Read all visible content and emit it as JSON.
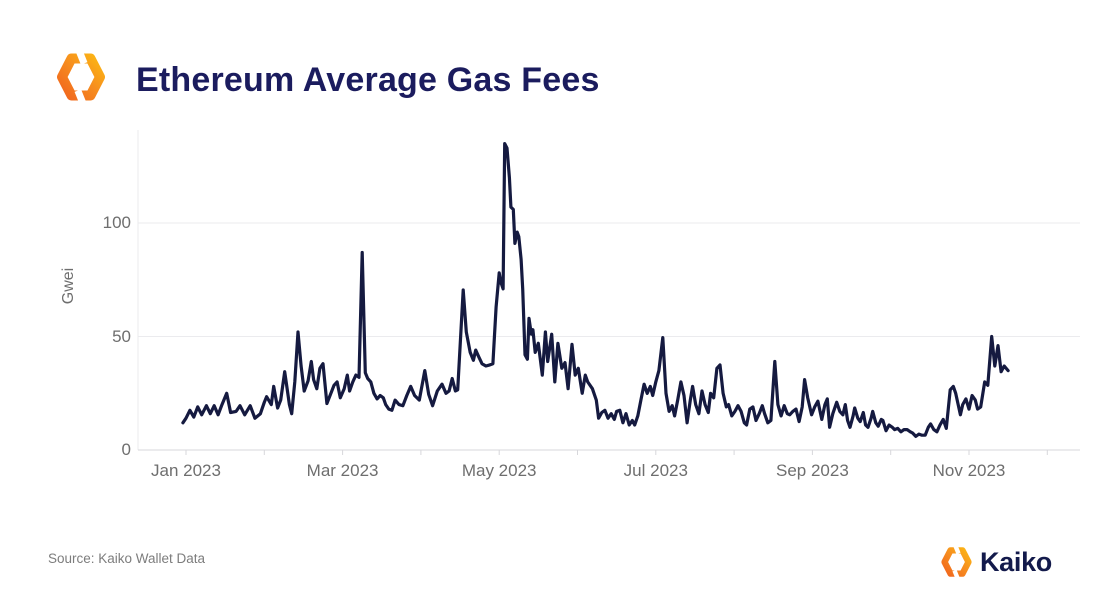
{
  "header": {
    "title": "Ethereum Average Gas Fees",
    "logo": "kaiko-hexagon-mark"
  },
  "footer": {
    "source_label": "Source: Kaiko Wallet Data",
    "brand_name": "Kaiko"
  },
  "colors": {
    "background": "#ffffff",
    "line": "#151a40",
    "title_navy": "#1b1c5e",
    "brand_navy": "#131a4b",
    "axis_text": "#6e6e6e",
    "source_text": "#7d7d7d",
    "gridline": "#ebebee",
    "axis_line": "#d7d7db",
    "logo_orange_dark": "#f1661d",
    "logo_orange_mid": "#f68b1f",
    "logo_orange_light": "#fcb614"
  },
  "chart_data": {
    "type": "line",
    "title": "Ethereum Average Gas Fees",
    "xlabel": "",
    "ylabel": "Gwei",
    "x_unit": "months_since_2023-01-01",
    "x_range": [
      "Jan 2023",
      "mid Nov 2023"
    ],
    "ylim": [
      0,
      141
    ],
    "grid": "horizontal-light",
    "legend": "none",
    "series_name": "Average gas fee (Gwei, daily)",
    "yticks": [
      {
        "value": 0,
        "label": "0"
      },
      {
        "value": 50,
        "label": "50"
      },
      {
        "value": 100,
        "label": "100"
      }
    ],
    "xticks": [
      {
        "month_index": 0,
        "label": "Jan 2023"
      },
      {
        "month_index": 2,
        "label": "Mar 2023"
      },
      {
        "month_index": 4,
        "label": "May 2023"
      },
      {
        "month_index": 6,
        "label": "Jul 2023"
      },
      {
        "month_index": 8,
        "label": "Sep 2023"
      },
      {
        "month_index": 10,
        "label": "Nov 2023"
      }
    ],
    "minor_tick_months": [
      0,
      1,
      2,
      3,
      4,
      5,
      6,
      7,
      8,
      9,
      10,
      11
    ],
    "points": [
      [
        -0.04,
        12
      ],
      [
        0,
        14
      ],
      [
        0.05,
        17.5
      ],
      [
        0.1,
        14.5
      ],
      [
        0.15,
        19
      ],
      [
        0.2,
        15.5
      ],
      [
        0.26,
        19.5
      ],
      [
        0.31,
        16
      ],
      [
        0.36,
        19.5
      ],
      [
        0.41,
        15.5
      ],
      [
        0.46,
        20
      ],
      [
        0.52,
        25
      ],
      [
        0.57,
        16.5
      ],
      [
        0.64,
        17
      ],
      [
        0.69,
        19.5
      ],
      [
        0.75,
        15.5
      ],
      [
        0.82,
        19.5
      ],
      [
        0.88,
        14
      ],
      [
        0.95,
        16
      ],
      [
        1,
        21
      ],
      [
        1.03,
        23.5
      ],
      [
        1.09,
        20
      ],
      [
        1.12,
        28
      ],
      [
        1.17,
        18.5
      ],
      [
        1.21,
        22
      ],
      [
        1.26,
        34.5
      ],
      [
        1.32,
        20
      ],
      [
        1.35,
        16
      ],
      [
        1.39,
        30
      ],
      [
        1.43,
        52
      ],
      [
        1.47,
        37
      ],
      [
        1.51,
        26
      ],
      [
        1.56,
        30.5
      ],
      [
        1.6,
        39
      ],
      [
        1.63,
        31
      ],
      [
        1.67,
        27
      ],
      [
        1.71,
        36
      ],
      [
        1.75,
        38
      ],
      [
        1.8,
        20.5
      ],
      [
        1.85,
        25
      ],
      [
        1.89,
        28.5
      ],
      [
        1.93,
        30
      ],
      [
        1.97,
        23
      ],
      [
        2.02,
        27
      ],
      [
        2.06,
        33
      ],
      [
        2.09,
        26
      ],
      [
        2.13,
        30
      ],
      [
        2.17,
        33
      ],
      [
        2.21,
        32
      ],
      [
        2.25,
        87
      ],
      [
        2.29,
        34
      ],
      [
        2.32,
        31.5
      ],
      [
        2.36,
        30
      ],
      [
        2.4,
        25
      ],
      [
        2.44,
        22.5
      ],
      [
        2.48,
        24
      ],
      [
        2.52,
        23
      ],
      [
        2.55,
        20
      ],
      [
        2.59,
        18
      ],
      [
        2.63,
        17.5
      ],
      [
        2.67,
        22
      ],
      [
        2.72,
        20
      ],
      [
        2.77,
        19.5
      ],
      [
        2.82,
        24
      ],
      [
        2.87,
        28
      ],
      [
        2.92,
        24
      ],
      [
        2.98,
        22
      ],
      [
        3.05,
        35
      ],
      [
        3.1,
        24.5
      ],
      [
        3.15,
        19.5
      ],
      [
        3.21,
        26
      ],
      [
        3.27,
        29
      ],
      [
        3.32,
        25
      ],
      [
        3.36,
        26
      ],
      [
        3.4,
        31.5
      ],
      [
        3.44,
        26
      ],
      [
        3.47,
        26.5
      ],
      [
        3.54,
        70.5
      ],
      [
        3.58,
        52
      ],
      [
        3.63,
        43
      ],
      [
        3.67,
        39.5
      ],
      [
        3.7,
        44
      ],
      [
        3.74,
        41
      ],
      [
        3.78,
        38
      ],
      [
        3.83,
        37
      ],
      [
        3.88,
        37.5
      ],
      [
        3.92,
        38
      ],
      [
        3.96,
        63
      ],
      [
        4,
        78
      ],
      [
        4.02,
        74
      ],
      [
        4.05,
        71
      ],
      [
        4.07,
        135
      ],
      [
        4.1,
        133
      ],
      [
        4.13,
        120
      ],
      [
        4.15,
        107
      ],
      [
        4.18,
        106
      ],
      [
        4.2,
        91
      ],
      [
        4.23,
        96
      ],
      [
        4.25,
        94
      ],
      [
        4.28,
        84
      ],
      [
        4.3,
        71
      ],
      [
        4.33,
        42
      ],
      [
        4.36,
        40
      ],
      [
        4.38,
        58
      ],
      [
        4.41,
        51
      ],
      [
        4.43,
        53
      ],
      [
        4.46,
        43
      ],
      [
        4.5,
        47
      ],
      [
        4.55,
        33
      ],
      [
        4.59,
        52
      ],
      [
        4.62,
        39
      ],
      [
        4.67,
        51
      ],
      [
        4.71,
        30
      ],
      [
        4.75,
        47
      ],
      [
        4.8,
        36
      ],
      [
        4.84,
        38.5
      ],
      [
        4.88,
        27
      ],
      [
        4.93,
        46.5
      ],
      [
        4.97,
        33
      ],
      [
        5.01,
        36
      ],
      [
        5.06,
        25
      ],
      [
        5.1,
        33
      ],
      [
        5.13,
        30
      ],
      [
        5.19,
        27
      ],
      [
        5.24,
        22
      ],
      [
        5.27,
        14
      ],
      [
        5.31,
        16.5
      ],
      [
        5.35,
        17.5
      ],
      [
        5.39,
        14
      ],
      [
        5.43,
        16
      ],
      [
        5.47,
        13.5
      ],
      [
        5.5,
        17
      ],
      [
        5.54,
        17.5
      ],
      [
        5.58,
        12
      ],
      [
        5.62,
        16
      ],
      [
        5.66,
        11
      ],
      [
        5.7,
        13
      ],
      [
        5.73,
        11
      ],
      [
        5.77,
        15
      ],
      [
        5.81,
        22
      ],
      [
        5.85,
        29
      ],
      [
        5.89,
        25
      ],
      [
        5.93,
        28
      ],
      [
        5.96,
        24
      ],
      [
        6,
        30
      ],
      [
        6.04,
        35
      ],
      [
        6.09,
        49.5
      ],
      [
        6.13,
        25
      ],
      [
        6.17,
        17
      ],
      [
        6.21,
        19.5
      ],
      [
        6.24,
        15
      ],
      [
        6.28,
        22
      ],
      [
        6.32,
        30
      ],
      [
        6.36,
        24
      ],
      [
        6.4,
        12
      ],
      [
        6.44,
        22
      ],
      [
        6.47,
        28
      ],
      [
        6.51,
        20
      ],
      [
        6.55,
        16
      ],
      [
        6.59,
        26
      ],
      [
        6.63,
        20
      ],
      [
        6.67,
        16.5
      ],
      [
        6.7,
        25
      ],
      [
        6.74,
        23
      ],
      [
        6.78,
        36
      ],
      [
        6.82,
        37.5
      ],
      [
        6.86,
        25
      ],
      [
        6.9,
        19
      ],
      [
        6.93,
        20
      ],
      [
        6.97,
        15
      ],
      [
        7.01,
        17
      ],
      [
        7.05,
        19.5
      ],
      [
        7.09,
        17
      ],
      [
        7.13,
        12
      ],
      [
        7.16,
        11
      ],
      [
        7.2,
        18
      ],
      [
        7.24,
        19
      ],
      [
        7.28,
        13
      ],
      [
        7.32,
        16
      ],
      [
        7.36,
        19.5
      ],
      [
        7.39,
        16
      ],
      [
        7.43,
        12
      ],
      [
        7.47,
        13
      ],
      [
        7.52,
        39
      ],
      [
        7.56,
        20
      ],
      [
        7.6,
        15
      ],
      [
        7.64,
        19.5
      ],
      [
        7.68,
        16
      ],
      [
        7.71,
        15.5
      ],
      [
        7.75,
        17
      ],
      [
        7.79,
        18
      ],
      [
        7.83,
        12.5
      ],
      [
        7.87,
        19
      ],
      [
        7.9,
        31
      ],
      [
        7.94,
        23
      ],
      [
        7.99,
        15.5
      ],
      [
        8.03,
        19
      ],
      [
        8.07,
        21.5
      ],
      [
        8.12,
        13.5
      ],
      [
        8.16,
        20
      ],
      [
        8.19,
        22.5
      ],
      [
        8.22,
        10
      ],
      [
        8.26,
        16
      ],
      [
        8.31,
        21
      ],
      [
        8.35,
        17
      ],
      [
        8.39,
        15.5
      ],
      [
        8.42,
        20
      ],
      [
        8.45,
        13
      ],
      [
        8.48,
        10
      ],
      [
        8.52,
        15
      ],
      [
        8.54,
        18.5
      ],
      [
        8.58,
        14
      ],
      [
        8.61,
        12.5
      ],
      [
        8.65,
        16.5
      ],
      [
        8.68,
        11
      ],
      [
        8.71,
        10
      ],
      [
        8.75,
        14
      ],
      [
        8.77,
        17
      ],
      [
        8.81,
        12
      ],
      [
        8.84,
        10.5
      ],
      [
        8.88,
        13.5
      ],
      [
        8.9,
        13
      ],
      [
        8.94,
        8.5
      ],
      [
        8.98,
        11
      ],
      [
        9.02,
        10
      ],
      [
        9.05,
        9
      ],
      [
        9.09,
        9.5
      ],
      [
        9.13,
        8
      ],
      [
        9.17,
        9
      ],
      [
        9.21,
        9
      ],
      [
        9.25,
        8
      ],
      [
        9.28,
        7.5
      ],
      [
        9.32,
        6
      ],
      [
        9.36,
        7
      ],
      [
        9.4,
        6.5
      ],
      [
        9.44,
        6.5
      ],
      [
        9.48,
        10
      ],
      [
        9.51,
        11.5
      ],
      [
        9.55,
        9
      ],
      [
        9.59,
        8
      ],
      [
        9.63,
        11
      ],
      [
        9.67,
        13.5
      ],
      [
        9.71,
        9.5
      ],
      [
        9.76,
        26.5
      ],
      [
        9.8,
        28
      ],
      [
        9.83,
        25
      ],
      [
        9.89,
        15.5
      ],
      [
        9.92,
        20
      ],
      [
        9.96,
        22.5
      ],
      [
        10,
        18
      ],
      [
        10.04,
        24
      ],
      [
        10.08,
        22
      ],
      [
        10.11,
        18
      ],
      [
        10.15,
        19
      ],
      [
        10.2,
        30
      ],
      [
        10.24,
        28.5
      ],
      [
        10.29,
        50
      ],
      [
        10.33,
        37
      ],
      [
        10.37,
        46
      ],
      [
        10.41,
        34.5
      ],
      [
        10.45,
        37
      ],
      [
        10.5,
        35
      ]
    ]
  }
}
